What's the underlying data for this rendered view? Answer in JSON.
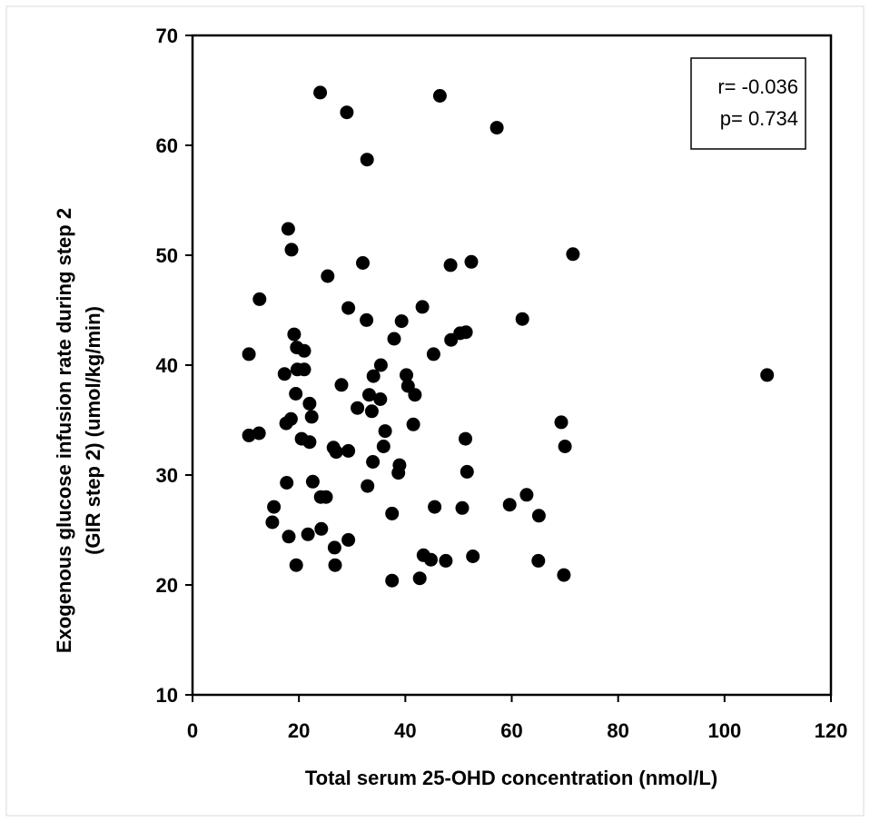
{
  "chart_data": {
    "type": "scatter",
    "xlabel": "Total serum 25-OHD concentration  (nmol/L)",
    "ylabel_lines": [
      "Exogenous glucose infusion rate during step 2",
      "(GIR step 2) (umol/kg/min)"
    ],
    "xlim": [
      0,
      120
    ],
    "ylim": [
      10,
      70
    ],
    "xticks": [
      0,
      20,
      40,
      60,
      80,
      100,
      120
    ],
    "yticks": [
      10,
      20,
      30,
      40,
      50,
      60,
      70
    ],
    "grid": false,
    "annotation": {
      "placement": "top-right",
      "lines": [
        "r= -0.036",
        "p= 0.734"
      ]
    },
    "marker_color": "#000000",
    "points": [
      [
        24,
        64.8
      ],
      [
        46.5,
        64.5
      ],
      [
        29,
        63
      ],
      [
        57.2,
        61.6
      ],
      [
        32.8,
        58.7
      ],
      [
        18,
        52.4
      ],
      [
        18.6,
        50.5
      ],
      [
        71.5,
        50.1
      ],
      [
        32,
        49.3
      ],
      [
        52.4,
        49.4
      ],
      [
        48.5,
        49.1
      ],
      [
        25.4,
        48.1
      ],
      [
        12.6,
        46
      ],
      [
        29.3,
        45.2
      ],
      [
        43.2,
        45.3
      ],
      [
        32.7,
        44.1
      ],
      [
        39.3,
        44
      ],
      [
        62,
        44.2
      ],
      [
        50.3,
        42.9
      ],
      [
        51.4,
        43
      ],
      [
        48.6,
        42.3
      ],
      [
        19.1,
        42.8
      ],
      [
        37.9,
        42.4
      ],
      [
        19.6,
        41.6
      ],
      [
        21,
        41.3
      ],
      [
        10.6,
        41
      ],
      [
        45.3,
        41
      ],
      [
        35.4,
        40
      ],
      [
        19.7,
        39.6
      ],
      [
        21,
        39.6
      ],
      [
        17.3,
        39.2
      ],
      [
        40.2,
        39.1
      ],
      [
        34,
        39
      ],
      [
        108,
        39.1
      ],
      [
        28,
        38.2
      ],
      [
        40.5,
        38.1
      ],
      [
        41.8,
        37.3
      ],
      [
        19.4,
        37.4
      ],
      [
        33.2,
        37.3
      ],
      [
        35.3,
        36.9
      ],
      [
        22,
        36.5
      ],
      [
        31,
        36.1
      ],
      [
        33.7,
        35.8
      ],
      [
        22.4,
        35.3
      ],
      [
        18.5,
        35.1
      ],
      [
        17.6,
        34.7
      ],
      [
        41.5,
        34.6
      ],
      [
        69.3,
        34.8
      ],
      [
        36.2,
        34
      ],
      [
        12.5,
        33.8
      ],
      [
        10.6,
        33.6
      ],
      [
        20.5,
        33.3
      ],
      [
        51.3,
        33.3
      ],
      [
        22,
        33
      ],
      [
        35.9,
        32.6
      ],
      [
        70,
        32.6
      ],
      [
        26.5,
        32.5
      ],
      [
        27,
        32.1
      ],
      [
        29.3,
        32.2
      ],
      [
        33.9,
        31.2
      ],
      [
        38.9,
        30.9
      ],
      [
        38.7,
        30.2
      ],
      [
        51.6,
        30.3
      ],
      [
        22.6,
        29.4
      ],
      [
        17.7,
        29.3
      ],
      [
        32.9,
        29
      ],
      [
        24.1,
        28
      ],
      [
        25.1,
        28
      ],
      [
        62.8,
        28.2
      ],
      [
        59.6,
        27.3
      ],
      [
        15.3,
        27.1
      ],
      [
        45.5,
        27.1
      ],
      [
        50.7,
        27
      ],
      [
        37.5,
        26.5
      ],
      [
        65.1,
        26.3
      ],
      [
        15,
        25.7
      ],
      [
        24.2,
        25.1
      ],
      [
        18.1,
        24.4
      ],
      [
        21.7,
        24.6
      ],
      [
        29.3,
        24.1
      ],
      [
        26.7,
        23.4
      ],
      [
        43.4,
        22.7
      ],
      [
        44.8,
        22.3
      ],
      [
        47.6,
        22.2
      ],
      [
        52.7,
        22.6
      ],
      [
        65,
        22.2
      ],
      [
        19.5,
        21.8
      ],
      [
        26.8,
        21.8
      ],
      [
        69.8,
        20.9
      ],
      [
        37.5,
        20.4
      ],
      [
        42.7,
        20.6
      ]
    ]
  }
}
